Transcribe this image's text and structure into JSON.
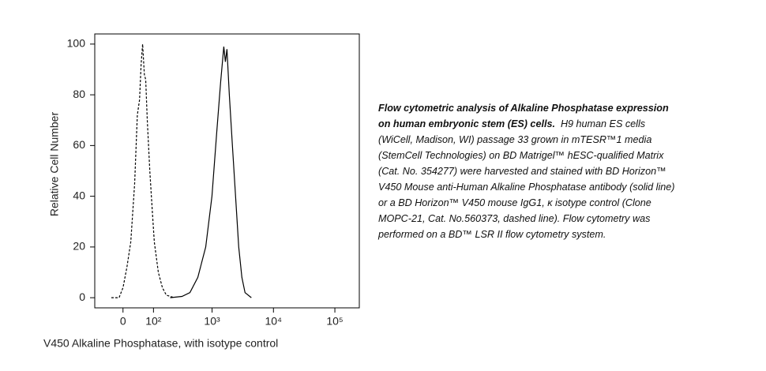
{
  "chart_data": {
    "type": "line",
    "x_label": "V450 Alkaline Phosphatase, with isotype control",
    "y_label": "Relative Cell Number",
    "xscale": "asinh",
    "xlim": [
      -90,
      250000
    ],
    "ylim": [
      -4,
      104
    ],
    "xticks": [
      0,
      {
        "value": 100,
        "label": "10²"
      },
      {
        "value": 1000,
        "label": "10³"
      },
      {
        "value": 10000,
        "label": "10⁴"
      },
      {
        "value": 100000,
        "label": "10⁵"
      }
    ],
    "yticks": [
      0,
      20,
      40,
      60,
      80,
      100
    ],
    "series": [
      {
        "color": "#000000",
        "style": "dashed",
        "x": [
          -32,
          -10.5,
          0,
          10.5,
          21,
          32,
          40,
          47,
          52,
          57,
          63,
          68,
          74,
          84,
          94,
          104,
          124,
          147,
          173,
          237
        ],
        "values": [
          0,
          0,
          4,
          12,
          22,
          45,
          72,
          78,
          92,
          100,
          88,
          86,
          70,
          50,
          35,
          22,
          10,
          4,
          1,
          0
        ]
      },
      {
        "color": "#000000",
        "style": "solid",
        "x": [
          202,
          321,
          434,
          585,
          787,
          997,
          1190,
          1379,
          1553,
          1648,
          1748,
          1909,
          2147,
          2419,
          2722,
          3062,
          3448,
          4368
        ],
        "values": [
          0,
          0.5,
          2,
          8,
          20,
          40,
          65,
          85,
          99,
          93,
          98,
          80,
          60,
          40,
          20,
          8,
          2,
          0
        ]
      }
    ]
  },
  "caption": {
    "bold": "Flow cytometric analysis of Alkaline Phosphatase expression on human embryonic stem (ES) cells.",
    "text": "H9 human ES cells (WiCell, Madison, WI) passage 33 grown in mTESR™1 media (StemCell Technologies) on BD Matrigel™ hESC-qualified Matrix (Cat. No. 354277) were harvested and stained with BD Horizon™ V450 Mouse anti-Human Alkaline Phosphatase antibody (solid line) or a BD Horizon™ V450 mouse IgG1, κ isotype control (Clone MOPC-21, Cat. No.560373, dashed line). Flow cytometry was performed on a BD™ LSR II flow cytometry system."
  }
}
